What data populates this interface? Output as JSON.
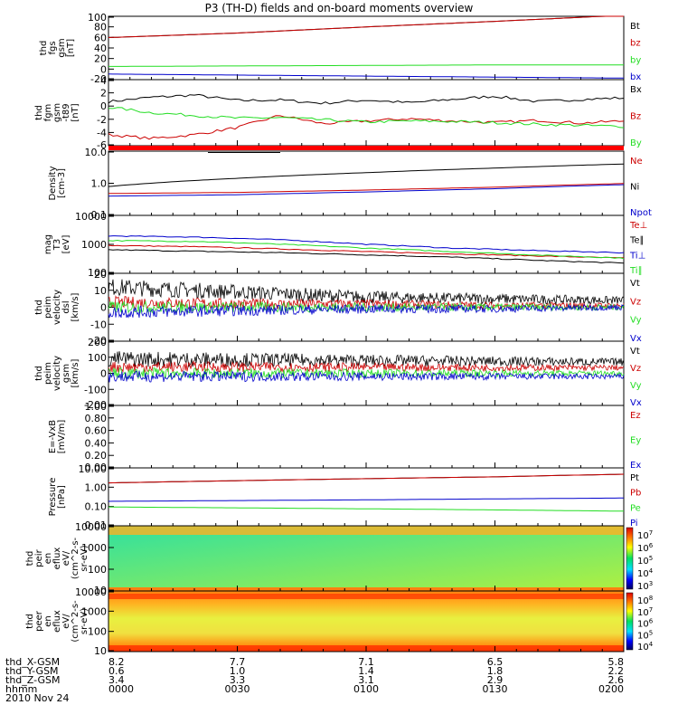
{
  "title": "P3 (TH-D) fields and on-board moments overview",
  "footer": {
    "row_labels": [
      "thd_X-GSM",
      "thd_Y-GSM",
      "thd_Z-GSM",
      "hhmm",
      "2010 Nov 24"
    ],
    "columns": [
      [
        "8.2",
        "0.6",
        "3.4",
        "0000"
      ],
      [
        "7.7",
        "1.0",
        "3.3",
        "0030"
      ],
      [
        "7.1",
        "1.4",
        "3.1",
        "0100"
      ],
      [
        "6.5",
        "1.8",
        "2.9",
        "0130"
      ],
      [
        "5.8",
        "2.2",
        "2.6",
        "0200"
      ]
    ]
  },
  "colors": {
    "black": "#000000",
    "red": "#cc0000",
    "green": "#22dd22",
    "blue": "#0000cc",
    "quality_bar": "#ff0000"
  },
  "chart_data": [
    {
      "type": "line",
      "name": "fgs-gsm",
      "ylabel": [
        "thd",
        "fgs",
        "gsm",
        "[nT]"
      ],
      "yticks": [
        "100",
        "80",
        "60",
        "40",
        "20",
        "0",
        "-20"
      ],
      "ylim": [
        -25,
        100
      ],
      "x": [
        0,
        30,
        60,
        90,
        120
      ],
      "series": [
        {
          "name": "Bt",
          "color": "#000000",
          "values": [
            58,
            67,
            79,
            90,
            102
          ]
        },
        {
          "name": "bz",
          "color": "#cc0000",
          "values": [
            58,
            67,
            79,
            90,
            102
          ]
        },
        {
          "name": "by",
          "color": "#22dd22",
          "values": [
            1,
            2,
            3,
            4,
            4
          ]
        },
        {
          "name": "bx",
          "color": "#0000cc",
          "values": [
            -14,
            -16,
            -18,
            -20,
            -22
          ]
        }
      ]
    },
    {
      "type": "line",
      "name": "fgm-dsl",
      "ylabel": [
        "thd",
        "fgm",
        "gsm",
        "-t89",
        "[nT]"
      ],
      "yticks": [
        "4",
        "2",
        "0",
        "-2",
        "-4",
        "-6"
      ],
      "ylim": [
        -7.5,
        4.5
      ],
      "x": [
        0,
        10,
        20,
        30,
        40,
        50,
        60,
        70,
        80,
        90,
        100,
        110,
        120
      ],
      "series": [
        {
          "name": "Bx",
          "color": "#000000",
          "values": [
            0.5,
            1.3,
            1.7,
            0.7,
            0.8,
            0.2,
            0.8,
            0.3,
            0.9,
            1.5,
            0.5,
            0.9,
            1.2
          ]
        },
        {
          "name": "Bz",
          "color": "#cc0000",
          "values": [
            -5.5,
            -6.2,
            -5.5,
            -4.2,
            -2.0,
            -3.5,
            -3.0,
            -2.6,
            -3.0,
            -3.3,
            -2.9,
            -3.4,
            -3.0
          ]
        },
        {
          "name": "By",
          "color": "#22dd22",
          "values": [
            -0.5,
            -1.5,
            -2.0,
            -2.5,
            -2.4,
            -2.8,
            -3.2,
            -3.0,
            -3.1,
            -3.3,
            -3.6,
            -3.8,
            -4.0
          ]
        }
      ]
    },
    {
      "type": "line",
      "name": "density",
      "log": true,
      "ylabel": [
        "Density",
        "[cm-3]"
      ],
      "yticks": [
        "10.0",
        "1.0",
        "0.1"
      ],
      "ylim": [
        0.1,
        15
      ],
      "x": [
        0,
        30,
        60,
        90,
        120
      ],
      "series": [
        {
          "name": "Ne",
          "color": "#cc0000",
          "values": [
            0.55,
            0.6,
            0.72,
            0.9,
            1.2
          ]
        },
        {
          "name": "Ni",
          "color": "#000000",
          "values": [
            0.95,
            1.8,
            2.8,
            4.0,
            5.5
          ]
        },
        {
          "name": "Npot",
          "color": "#0000cc",
          "values": [
            0.45,
            0.5,
            0.62,
            0.8,
            1.1
          ]
        }
      ]
    },
    {
      "type": "line",
      "name": "temperature",
      "log": true,
      "ylabel": [
        "mag",
        "T3",
        "[eV]"
      ],
      "yticks": [
        "10000",
        "1000",
        "100"
      ],
      "ylim": [
        100,
        12000
      ],
      "x": [
        0,
        20,
        40,
        60,
        80,
        100,
        120
      ],
      "series": [
        {
          "name": "Te⊥",
          "color": "#cc0000",
          "values": [
            1000,
            900,
            750,
            600,
            500,
            420,
            350
          ]
        },
        {
          "name": "Te∥",
          "color": "#000000",
          "values": [
            700,
            620,
            550,
            460,
            380,
            290,
            230
          ]
        },
        {
          "name": "Ti⊥",
          "color": "#0000cc",
          "values": [
            2200,
            2000,
            1600,
            1100,
            800,
            650,
            550
          ]
        },
        {
          "name": "Ti∥",
          "color": "#22dd22",
          "values": [
            1500,
            1400,
            1100,
            800,
            600,
            450,
            350
          ]
        }
      ]
    },
    {
      "type": "line",
      "name": "peim-velocity-dsl",
      "ylabel": [
        "thd",
        "peim",
        "velocity",
        "dsl",
        "[km/s]"
      ],
      "yticks": [
        "20",
        "10",
        "0",
        "-10",
        "-20"
      ],
      "ylim": [
        -20,
        20
      ],
      "series": [
        {
          "name": "Vt",
          "color": "#000000",
          "values": [
            12,
            9,
            6,
            5,
            4
          ]
        },
        {
          "name": "Vz",
          "color": "#cc0000",
          "values": [
            3,
            2,
            2,
            1,
            1
          ]
        },
        {
          "name": "Vy",
          "color": "#22dd22",
          "values": [
            0,
            0,
            0,
            0,
            0
          ]
        },
        {
          "name": "Vx",
          "color": "#0000cc",
          "values": [
            -3,
            -2,
            -1,
            -1,
            0
          ]
        }
      ]
    },
    {
      "type": "line",
      "name": "peim-velocity-gsm",
      "ylabel": [
        "thd",
        "peim",
        "velocity",
        "gsm",
        "[km/s]"
      ],
      "yticks": [
        "200",
        "100",
        "0",
        "-100",
        "-200"
      ],
      "ylim": [
        -200,
        200
      ],
      "series": [
        {
          "name": "Vt",
          "color": "#000000",
          "values": [
            90,
            85,
            80,
            75,
            70
          ]
        },
        {
          "name": "Vz",
          "color": "#cc0000",
          "values": [
            40,
            40,
            38,
            35,
            35
          ]
        },
        {
          "name": "Vy",
          "color": "#22dd22",
          "values": [
            0,
            0,
            0,
            0,
            0
          ]
        },
        {
          "name": "Vx",
          "color": "#0000cc",
          "values": [
            -20,
            -20,
            -20,
            -20,
            -20
          ]
        }
      ]
    },
    {
      "type": "line",
      "name": "e-vxb",
      "ylabel": [
        "E=-VxB",
        "[mV/m]"
      ],
      "yticks": [
        "1.00",
        "0.80",
        "0.60",
        "0.40",
        "0.20",
        "0.00"
      ],
      "ylim": [
        0,
        1
      ],
      "series": [
        {
          "name": "Ez",
          "color": "#cc0000",
          "values": []
        },
        {
          "name": "Ey",
          "color": "#22dd22",
          "values": []
        },
        {
          "name": "Ex",
          "color": "#0000cc",
          "values": []
        }
      ]
    },
    {
      "type": "line",
      "name": "pressure",
      "log": true,
      "ylabel": [
        "Pressure",
        "[nPa]"
      ],
      "yticks": [
        "10.00",
        "1.00",
        "0.10",
        "0.01"
      ],
      "ylim": [
        0.01,
        12
      ],
      "x": [
        0,
        30,
        60,
        90,
        120
      ],
      "series": [
        {
          "name": "Pt",
          "color": "#000000",
          "values": [
            1.9,
            2.5,
            3.2,
            4.0,
            5.5
          ]
        },
        {
          "name": "Pb",
          "color": "#cc0000",
          "values": [
            1.9,
            2.5,
            3.2,
            4.0,
            5.5
          ]
        },
        {
          "name": "Pe",
          "color": "#22dd22",
          "values": [
            0.1,
            0.09,
            0.08,
            0.07,
            0.06
          ]
        },
        {
          "name": "Pi",
          "color": "#0000cc",
          "values": [
            0.2,
            0.22,
            0.24,
            0.27,
            0.3
          ]
        }
      ]
    },
    {
      "type": "heatmap",
      "name": "peir-en-eflux",
      "ylabel": [
        "thd",
        "peir",
        "en",
        "eflux",
        "eV/",
        "(cm^2-s-",
        "sr-eV)"
      ],
      "yticks": [
        "10000",
        "1000",
        "100",
        "10"
      ],
      "colorbar": {
        "ticks": [
          "10^7",
          "10^6",
          "10^5",
          "10^4",
          "10^3"
        ],
        "range": [
          1000,
          10000000
        ]
      }
    },
    {
      "type": "heatmap",
      "name": "peer-en-eflux",
      "ylabel": [
        "thd",
        "peer",
        "en",
        "eflux",
        "eV/",
        "(cm^2-s-",
        "sr-eV)"
      ],
      "yticks": [
        "10000",
        "1000",
        "100",
        "10"
      ],
      "colorbar": {
        "ticks": [
          "10^8",
          "10^7",
          "10^6",
          "10^5",
          "10^4"
        ],
        "range": [
          10000,
          100000000
        ]
      }
    }
  ]
}
